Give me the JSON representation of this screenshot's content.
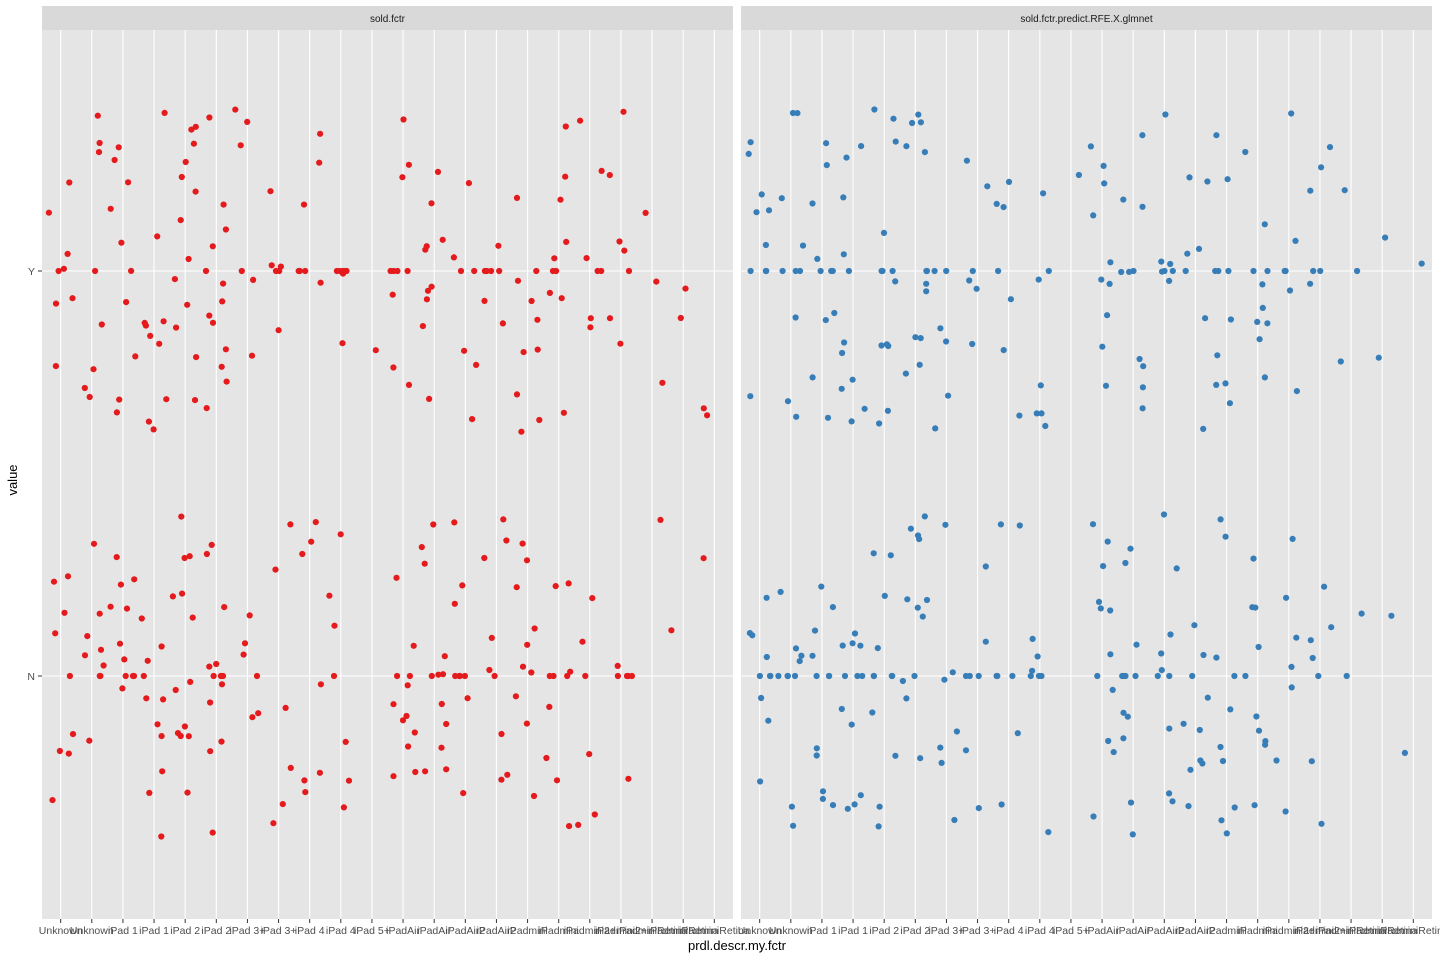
{
  "chart_data": {
    "type": "scatter",
    "subtype": "faceted jittered strip plot",
    "xlabel": "prdl.descr.my.fctr",
    "ylabel": "value",
    "categories": [
      "Unknown",
      "Unknown#1",
      "iPad 1",
      "iPad 1#1",
      "iPad 2",
      "iPad 2#1",
      "iPad 3+",
      "iPad 3+#1",
      "iPad 4",
      "iPad 4#1",
      "iPad 5+",
      "iPadAir",
      "iPadAir#1",
      "iPadAir2",
      "iPadAir2#1",
      "iPadmini",
      "iPadmini#1",
      "iPadmini2+",
      "iPadmini2+#1",
      "iPadminiRetina",
      "iPadminiRetina#1",
      "iPadminiRetina#2"
    ],
    "y_categories": [
      "N",
      "Y"
    ],
    "jitter": {
      "width": 0.4,
      "height": 0.4
    },
    "grid": true,
    "legend": "none",
    "panel_background": "#e5e5e5",
    "strip_background": "#d9d9d9",
    "gridline_color": "#ffffff",
    "facets": [
      {
        "title": "sold.fctr",
        "color": "#e41a1c",
        "counts_N": [
          9,
          9,
          11,
          11,
          13,
          13,
          6,
          6,
          7,
          7,
          0,
          12,
          12,
          9,
          9,
          10,
          10,
          6,
          6,
          1,
          1,
          1
        ],
        "counts_Y": [
          8,
          8,
          10,
          10,
          13,
          13,
          6,
          6,
          7,
          7,
          1,
          10,
          10,
          7,
          7,
          10,
          10,
          7,
          7,
          3,
          2,
          2
        ]
      },
      {
        "title": "sold.fctr.predict.RFE.X.glmnet",
        "color": "#377eb8",
        "counts_N": [
          10,
          10,
          12,
          12,
          12,
          12,
          7,
          7,
          7,
          7,
          0,
          12,
          12,
          10,
          10,
          10,
          10,
          7,
          7,
          2,
          1,
          1
        ],
        "counts_Y": [
          10,
          10,
          11,
          11,
          13,
          13,
          6,
          6,
          7,
          7,
          1,
          10,
          10,
          7,
          7,
          10,
          10,
          6,
          6,
          3,
          2,
          1
        ]
      }
    ]
  }
}
